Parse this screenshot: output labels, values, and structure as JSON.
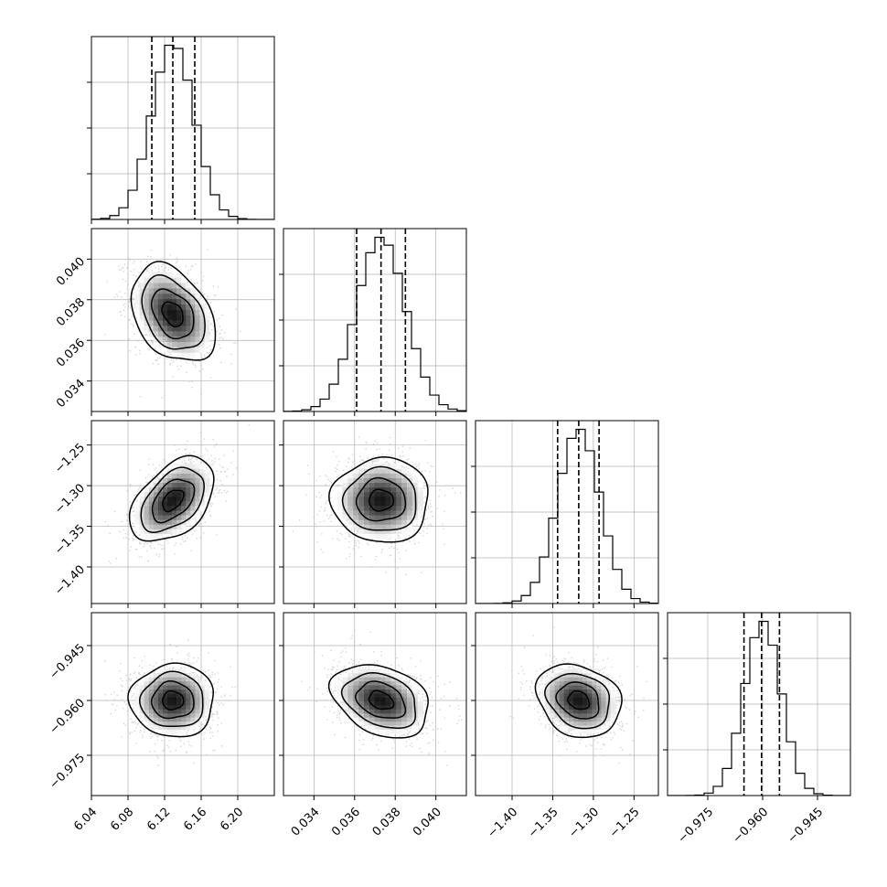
{
  "colors": {
    "line": "#000000",
    "grid": "#b0b0b0",
    "scatter": "#c8c8c8",
    "background": "#ffffff"
  },
  "chart_data": {
    "type": "corner",
    "grid": true,
    "parameters": [
      {
        "mean": 6.129,
        "sd": 0.023,
        "q16": 6.106,
        "q50": 6.129,
        "q84": 6.153,
        "range": [
          6.04,
          6.24
        ],
        "ticks": [
          6.04,
          6.08,
          6.12,
          6.16,
          6.2
        ],
        "tick_labels": [
          "6.04",
          "6.08",
          "6.12",
          "6.16",
          "6.20"
        ]
      },
      {
        "mean": 0.0373,
        "sd": 0.0012,
        "q16": 0.0361,
        "q50": 0.0373,
        "q84": 0.0385,
        "range": [
          0.0325,
          0.0415
        ],
        "ticks": [
          0.034,
          0.036,
          0.038,
          0.04
        ],
        "tick_labels": [
          "0.034",
          "0.036",
          "0.038",
          "0.040"
        ]
      },
      {
        "mean": -1.318,
        "sd": 0.026,
        "q16": -1.344,
        "q50": -1.318,
        "q84": -1.293,
        "range": [
          -1.445,
          -1.22
        ],
        "ticks": [
          -1.4,
          -1.35,
          -1.3,
          -1.25
        ],
        "tick_labels": [
          "−1.40",
          "−1.35",
          "−1.30",
          "−1.25"
        ]
      },
      {
        "mean": -0.96,
        "sd": 0.005,
        "q16": -0.9651,
        "q50": -0.9603,
        "q84": -0.9554,
        "range": [
          -0.986,
          -0.936
        ],
        "ticks": [
          -0.975,
          -0.96,
          -0.945
        ],
        "tick_labels": [
          "−0.975",
          "−0.960",
          "−0.945"
        ]
      }
    ],
    "correlations": [
      {
        "pair": [
          0,
          1
        ],
        "rho": -0.35
      },
      {
        "pair": [
          0,
          2
        ],
        "rho": 0.45
      },
      {
        "pair": [
          1,
          2
        ],
        "rho": 0.0
      },
      {
        "pair": [
          0,
          3
        ],
        "rho": 0.0
      },
      {
        "pair": [
          1,
          3
        ],
        "rho": -0.3
      },
      {
        "pair": [
          2,
          3
        ],
        "rho": -0.2
      }
    ],
    "histogram_bins": 20,
    "quantile_lines": [
      0.16,
      0.5,
      0.84
    ],
    "contour_levels": [
      0.5,
      1.0,
      1.5,
      2.0
    ]
  }
}
